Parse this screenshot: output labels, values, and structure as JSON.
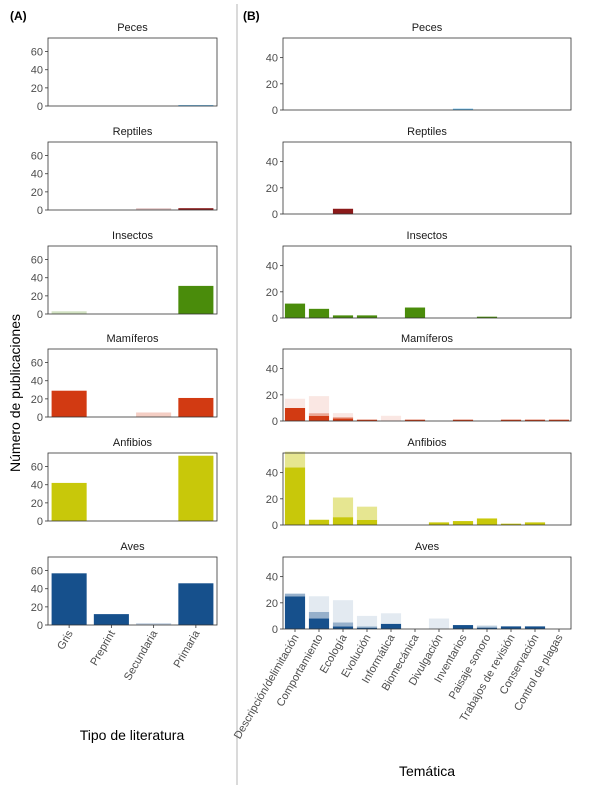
{
  "figure": {
    "y_axis_label": "Número de publicaciones",
    "panel_a_tag": "(A)",
    "panel_b_tag": "(B)"
  },
  "chart_data": [
    {
      "panel": "A",
      "type": "bar",
      "layout": "faceted stacked bars",
      "xlabel": "Tipo de literatura",
      "ylabel": "Número de publicaciones",
      "categories": [
        "Gris",
        "Preprint",
        "Secundaria",
        "Primaria"
      ],
      "ylim": [
        0,
        75
      ],
      "yticks": [
        0,
        20,
        40,
        60
      ],
      "grid": false,
      "facets": [
        {
          "title": "Peces",
          "color": "#5fb4e6",
          "values": [
            0,
            0,
            0,
            1
          ]
        },
        {
          "title": "Reptiles",
          "color": "#8b1a1a",
          "values": [
            0,
            0,
            2,
            2
          ]
        },
        {
          "title": "Insectos",
          "color": "#4a8c0b",
          "values": [
            3,
            0,
            0,
            31
          ]
        },
        {
          "title": "Mamíferos",
          "color": "#d23a12",
          "values": [
            29,
            0,
            5,
            21
          ]
        },
        {
          "title": "Anfibios",
          "color": "#c8c80a",
          "values": [
            42,
            0,
            0,
            72
          ]
        },
        {
          "title": "Aves",
          "color": "#16508c",
          "values": [
            57,
            12,
            2,
            46
          ]
        }
      ]
    },
    {
      "panel": "B",
      "type": "bar",
      "layout": "faceted stacked bars",
      "xlabel": "Temática",
      "ylabel": "Número de publicaciones",
      "categories": [
        "Descripción/delimitación",
        "Comportamiento",
        "Ecología",
        "Evolución",
        "Informática",
        "Biomecánica",
        "Divulgación",
        "Inventarios",
        "Paisaje sonoro",
        "Trabajos de revisión",
        "Conservación",
        "Control de plagas"
      ],
      "ylim": [
        0,
        55
      ],
      "yticks": [
        0,
        20,
        40
      ],
      "grid": false,
      "facets": [
        {
          "title": "Peces",
          "color": "#5fb4e6",
          "series": [
            {
              "values": [
                0,
                0,
                0,
                0,
                0,
                0,
                0,
                1,
                0,
                0,
                0,
                0
              ]
            }
          ]
        },
        {
          "title": "Reptiles",
          "color": "#8b1a1a",
          "series": [
            {
              "values": [
                0,
                0,
                4,
                0,
                0,
                0,
                0,
                0,
                0,
                0,
                0,
                0
              ]
            }
          ]
        },
        {
          "title": "Insectos",
          "color": "#4a8c0b",
          "series": [
            {
              "values": [
                11,
                7,
                2,
                2,
                0,
                8,
                0,
                0,
                1,
                0,
                0,
                0
              ]
            }
          ]
        },
        {
          "title": "Mamíferos",
          "color": "#d23a12",
          "series": [
            {
              "values": [
                10,
                4,
                2,
                1,
                0,
                1,
                0,
                1,
                0,
                1,
                1,
                1
              ]
            },
            {
              "values": [
                0,
                2,
                1,
                0,
                0,
                0,
                0,
                0,
                0,
                0,
                0,
                0
              ]
            },
            {
              "values": [
                7,
                13,
                3,
                0,
                4,
                0,
                0,
                0,
                0,
                0,
                0,
                0
              ]
            }
          ]
        },
        {
          "title": "Anfibios",
          "color": "#c8c80a",
          "series": [
            {
              "values": [
                44,
                4,
                6,
                4,
                0,
                0,
                2,
                3,
                5,
                1,
                2,
                0
              ]
            },
            {
              "values": [
                12,
                0,
                15,
                10,
                0,
                0,
                0,
                0,
                0,
                0,
                0,
                0
              ]
            }
          ]
        },
        {
          "title": "Aves",
          "color": "#16508c",
          "series": [
            {
              "values": [
                25,
                8,
                2,
                1,
                4,
                0,
                0,
                3,
                1,
                2,
                2,
                0
              ]
            },
            {
              "values": [
                2,
                5,
                3,
                1,
                0,
                0,
                0,
                0,
                1,
                0,
                0,
                0
              ]
            },
            {
              "values": [
                0,
                12,
                17,
                8,
                8,
                0,
                8,
                0,
                1,
                0,
                0,
                0
              ]
            }
          ]
        }
      ]
    }
  ]
}
